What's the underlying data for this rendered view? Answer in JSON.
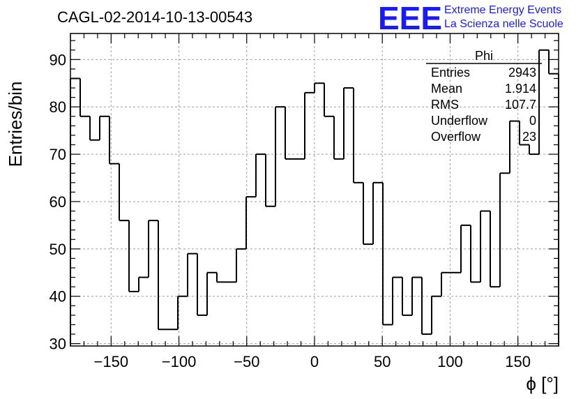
{
  "chart_data": {
    "type": "histogram",
    "title": "CAGL-02-2014-10-13-00543",
    "xlabel": "ϕ [°]",
    "ylabel": "Entries/bin",
    "xlim": [
      -180,
      180
    ],
    "ylim": [
      29.5,
      95.5
    ],
    "grid": true,
    "bin_edges_start": -180,
    "bin_width": 7.2,
    "values": [
      86,
      78,
      73,
      78,
      68,
      56,
      41,
      44,
      56,
      33,
      33,
      40,
      49,
      36,
      45,
      43,
      43,
      50,
      61,
      70,
      59,
      80,
      69,
      69,
      83,
      85,
      78,
      69,
      84,
      64,
      51,
      64,
      34,
      44,
      36,
      44,
      32,
      40,
      45,
      45,
      55,
      43,
      58,
      42,
      66,
      77,
      72,
      70,
      92,
      87
    ],
    "x_ticks": [
      -150,
      -100,
      -50,
      0,
      50,
      100,
      150
    ],
    "y_ticks": [
      30,
      40,
      50,
      60,
      70,
      80,
      90
    ],
    "x_tick_labels": [
      "−150",
      "−100",
      "−50",
      "0",
      "50",
      "100",
      "150"
    ],
    "y_tick_labels": [
      "30",
      "40",
      "50",
      "60",
      "70",
      "80",
      "90"
    ]
  },
  "stats_box": {
    "title": "Phi",
    "rows": [
      {
        "label": "Entries",
        "value": "2943"
      },
      {
        "label": "Mean",
        "value": "1.914"
      },
      {
        "label": "RMS",
        "value": "107.7"
      },
      {
        "label": "Underflow",
        "value": "0"
      },
      {
        "label": "Overflow",
        "value": "23"
      }
    ]
  },
  "logo": {
    "mark": "EEE",
    "line1": "Extreme Energy Events",
    "line2": "La Scienza nelle Scuole",
    "color": "#1a1aff"
  }
}
